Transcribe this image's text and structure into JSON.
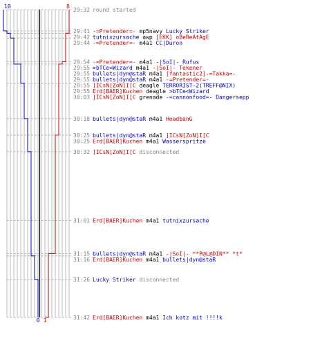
{
  "chart_data": {
    "type": "line",
    "title": "",
    "axis_labels": {
      "left_top": "10",
      "right_top": "8",
      "bottom_left": "0",
      "bottom_right": "1"
    },
    "colors": {
      "blue_team": "#0000cc",
      "red_team": "#cc0000",
      "time": "#808080",
      "killer_blue": "#0000cc",
      "killer_red": "#cc0000",
      "grid": "#bbbbbb",
      "dash": "#aaaaaa",
      "center": "#000000"
    },
    "time_range": [
      "29:32",
      "31:42"
    ],
    "series": [
      {
        "team": "blue",
        "points": [
          [
            "29:32",
            10
          ],
          [
            "29:41",
            9
          ],
          [
            "29:42",
            8
          ],
          [
            "29:44",
            7
          ],
          [
            "29:54",
            7
          ],
          [
            "29:55",
            5
          ],
          [
            "30:03",
            4
          ],
          [
            "30:18",
            3
          ],
          [
            "30:25",
            3
          ],
          [
            "30:32",
            2
          ],
          [
            "31:01",
            2
          ],
          [
            "31:15",
            2
          ],
          [
            "31:16",
            1
          ],
          [
            "31:26",
            0
          ],
          [
            "31:42",
            0
          ]
        ]
      },
      {
        "team": "red",
        "points": [
          [
            "29:32",
            8
          ],
          [
            "29:41",
            8
          ],
          [
            "29:42",
            7
          ],
          [
            "29:54",
            6
          ],
          [
            "29:55",
            5
          ],
          [
            "30:25",
            4
          ],
          [
            "31:15",
            2
          ],
          [
            "31:42",
            1
          ]
        ]
      }
    ],
    "events": [
      {
        "time": "29:32",
        "type": "system",
        "text": "round started"
      },
      {
        "time": "29:41",
        "killer": "-=Pretender=-",
        "killer_team": "red",
        "weapon": "mp5navy",
        "victim": "Lucky Striker",
        "victim_team": "blue"
      },
      {
        "time": "29:42",
        "killer": "tutnixzursache",
        "killer_team": "blue",
        "weapon": "awp",
        "victim": "[EKK] oBeReAtAgE",
        "victim_team": "red"
      },
      {
        "time": "29:44",
        "killer": "-=Pretender=-",
        "killer_team": "red",
        "weapon": "m4a1",
        "victim": "CC|Duron",
        "victim_team": "blue"
      },
      {
        "time": "29:54",
        "killer": "-=Pretender=-",
        "killer_team": "red",
        "weapon": "m4a1",
        "victim": "-|SoI|- Rufus",
        "victim_team": "blue"
      },
      {
        "time": "29:55",
        "killer": ">bTCe<Wizard",
        "killer_team": "blue",
        "weapon": "m4a1",
        "victim": "-|SoI|- Tekener",
        "victim_team": "red"
      },
      {
        "time": "29:55",
        "killer": "bullets|dyn@staR",
        "killer_team": "blue",
        "weapon": "m4a1",
        "victim": "[fantastic2]-=Takka=-",
        "victim_team": "red"
      },
      {
        "time": "29:55",
        "killer": "bullets|dyn@staR",
        "killer_team": "blue",
        "weapon": "m4a1",
        "victim": "-=Pretender=-",
        "victim_team": "red"
      },
      {
        "time": "29:55",
        "killer": "]ICsN[ZoN]I[C",
        "killer_team": "red",
        "weapon": "deagle",
        "victim": "TERRORIST-2(TREFF@NIX)",
        "victim_team": "blue"
      },
      {
        "time": "29:55",
        "killer": "Erd[BAER]Kuchen",
        "killer_team": "red",
        "weapon": "deagle",
        "victim": ">bTCe<Wizard",
        "victim_team": "blue"
      },
      {
        "time": "30:03",
        "killer": "]ICsN[ZoN]I[C",
        "killer_team": "red",
        "weapon": "grenade",
        "victim": "-=cannonfood=- Dangersepp",
        "victim_team": "blue"
      },
      {
        "time": "30:18",
        "killer": "bullets|dyn@staR",
        "killer_team": "blue",
        "weapon": "m4a1",
        "victim": "HeadbanG",
        "victim_team": "red"
      },
      {
        "time": "30:25",
        "killer": "bullets|dyn@staR",
        "killer_team": "blue",
        "weapon": "m4a1",
        "victim": "]ICsN[ZoN]I[C",
        "victim_team": "red"
      },
      {
        "time": "30:25",
        "killer": "Erd[BAER]Kuchen",
        "killer_team": "red",
        "weapon": "m4a1",
        "victim": "Wasserspritze",
        "victim_team": "blue"
      },
      {
        "time": "30:32",
        "type": "disconnect",
        "player": "]ICsN[ZoN]I[C",
        "player_team": "red",
        "text": "disconnected"
      },
      {
        "time": "31:01",
        "killer": "Erd[BAER]Kuchen",
        "killer_team": "red",
        "weapon": "m4a1",
        "victim": "tutnixzursache",
        "victim_team": "blue"
      },
      {
        "time": "31:15",
        "killer": "bullets|dyn@staR",
        "killer_team": "blue",
        "weapon": "m4a1",
        "victim": "-|SoI|- **P@L@DIN** *t*",
        "victim_team": "red"
      },
      {
        "time": "31:16",
        "killer": "Erd[BAER]Kuchen",
        "killer_team": "red",
        "weapon": "m4a1",
        "victim": "bullets|dyn@staR",
        "victim_team": "blue"
      },
      {
        "time": "31:26",
        "type": "disconnect",
        "player": "Lucky Striker",
        "player_team": "blue",
        "text": "disconnected"
      },
      {
        "time": "31:42",
        "killer": "Erd[BAER]Kuchen",
        "killer_team": "red",
        "weapon": "m4a1",
        "victim": "Ich kotz mit !!!!k",
        "victim_team": "blue"
      }
    ]
  }
}
